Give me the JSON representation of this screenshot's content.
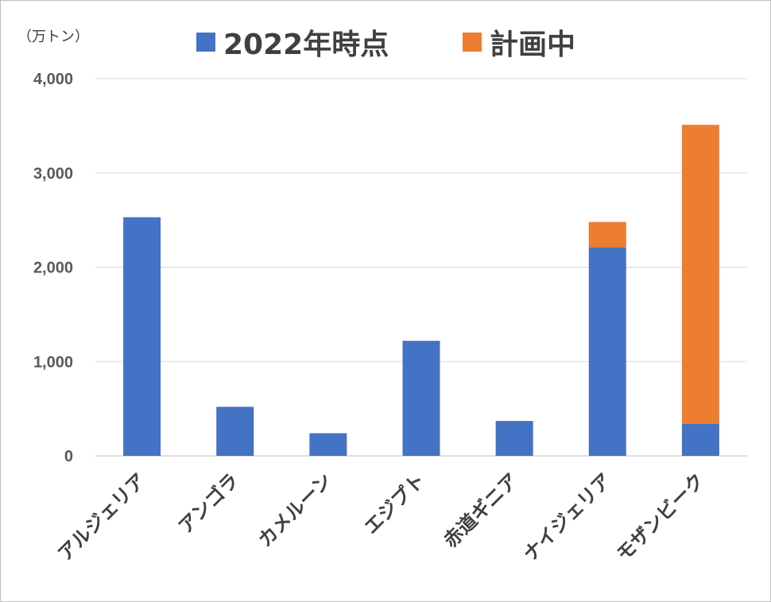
{
  "chart_data": {
    "type": "bar",
    "stacked": true,
    "unit_label": "（万トン）",
    "categories": [
      "アルジェリア",
      "アンゴラ",
      "カメルーン",
      "エジプト",
      "赤道ギニア",
      "ナイジェリア",
      "モザンビーク"
    ],
    "series": [
      {
        "name": "2022年時点",
        "color": "#4472C4",
        "values": [
          2530,
          520,
          240,
          1220,
          370,
          2210,
          340
        ]
      },
      {
        "name": "計画中",
        "color": "#ED7D31",
        "values": [
          0,
          0,
          0,
          0,
          0,
          270,
          3170
        ]
      }
    ],
    "ylim": [
      0,
      4000
    ],
    "yticks": [
      "0",
      "1,000",
      "2,000",
      "3,000",
      "4,000"
    ],
    "grid": true,
    "legend_position": "top"
  }
}
